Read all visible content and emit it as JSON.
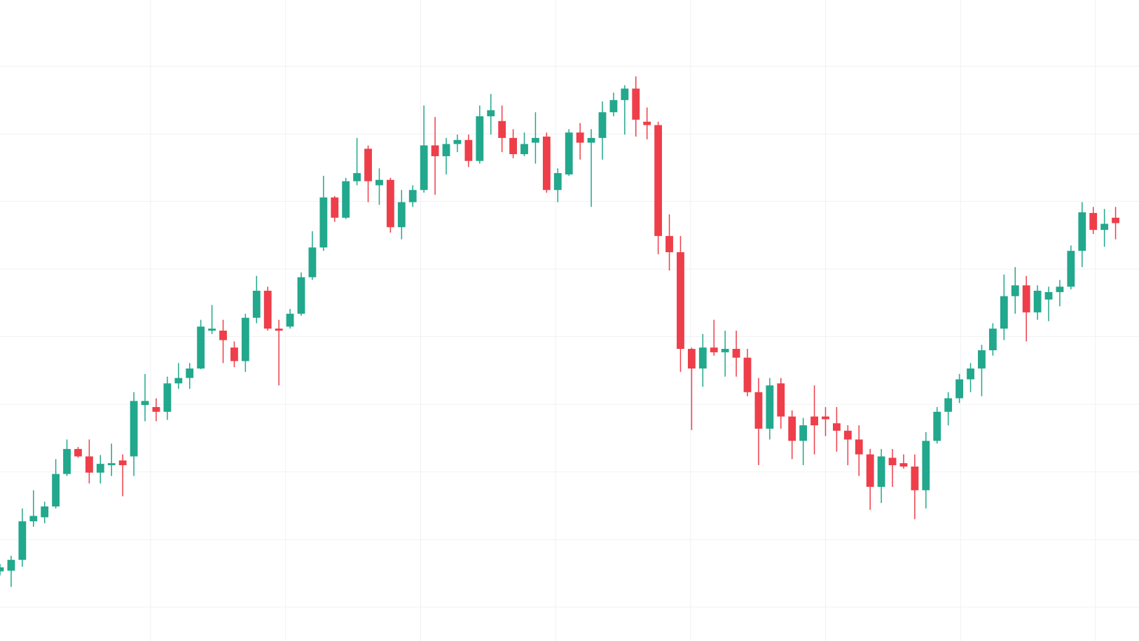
{
  "chart_data": {
    "type": "candlestick",
    "up_color": "#22a88c",
    "down_color": "#ee3e4a",
    "grid": true,
    "xlim": [
      0,
      102.1
    ],
    "xticks": [
      13.5,
      25.6,
      37.7,
      49.8,
      61.9,
      74,
      86.1,
      98.2
    ],
    "ylim": [
      0,
      94.8
    ],
    "yticks": [
      5,
      15,
      25,
      35,
      45,
      55,
      65,
      75,
      85
    ],
    "x": [
      0,
      1,
      2,
      3,
      4,
      5,
      6,
      7,
      8,
      9,
      10,
      11,
      12,
      13,
      14,
      15,
      16,
      17,
      18,
      19,
      20,
      21,
      22,
      23,
      24,
      25,
      26,
      27,
      28,
      29,
      30,
      31,
      32,
      33,
      34,
      35,
      36,
      37,
      38,
      39,
      40,
      41,
      42,
      43,
      44,
      45,
      46,
      47,
      48,
      49,
      50,
      51,
      52,
      53,
      54,
      55,
      56,
      57,
      58,
      59,
      60,
      61,
      62,
      63,
      64,
      65,
      66,
      67,
      68,
      69,
      70,
      71,
      72,
      73,
      74,
      75,
      76,
      77,
      78,
      79,
      80,
      81,
      82,
      83,
      84,
      85,
      86,
      87,
      88,
      89,
      90,
      91,
      92,
      93,
      94,
      95,
      96,
      97,
      98,
      99,
      100
    ],
    "open": [
      10.3,
      10.4,
      12.0,
      17.7,
      18.3,
      19.9,
      24.7,
      28.4,
      27.3,
      24.9,
      26.0,
      26.7,
      27.3,
      34.9,
      34.6,
      33.9,
      38.1,
      38.9,
      40.3,
      45.9,
      45.9,
      43.4,
      41.4,
      47.8,
      51.8,
      46.2,
      46.5,
      48.4,
      53.8,
      58.2,
      65.6,
      62.6,
      68.0,
      72.8,
      67.4,
      68.2,
      61.2,
      64.9,
      66.7,
      73.3,
      71.7,
      73.5,
      74.1,
      71.0,
      77.6,
      76.9,
      74.4,
      72.0,
      73.7,
      74.6,
      66.7,
      69.0,
      75.2,
      73.7,
      74.4,
      78.2,
      80.0,
      81.7,
      76.8,
      76.3,
      59.9,
      57.5,
      43.2,
      40.3,
      43.4,
      42.7,
      43.2,
      41.9,
      36.8,
      31.4,
      38.1,
      33.2,
      29.6,
      33.2,
      33.2,
      32.2,
      31.1,
      29.8,
      27.6,
      22.8,
      27.1,
      26.3,
      25.8,
      22.3,
      29.6,
      33.9,
      35.9,
      38.7,
      40.3,
      43.0,
      46.2,
      51.0,
      52.6,
      48.6,
      50.5,
      51.6,
      52.4,
      57.7,
      63.3,
      60.8,
      62.6
    ],
    "high": [
      11.4,
      12.6,
      19.6,
      22.3,
      20.6,
      26.9,
      29.8,
      28.7,
      29.8,
      27.5,
      29.2,
      27.6,
      36.8,
      39.5,
      35.9,
      39.1,
      41.1,
      41.1,
      47.5,
      49.7,
      47.5,
      44.3,
      48.4,
      54.0,
      52.4,
      47.5,
      49.1,
      54.5,
      60.6,
      68.8,
      65.8,
      68.5,
      74.4,
      73.3,
      69.9,
      68.5,
      66.7,
      67.4,
      79.2,
      77.5,
      74.4,
      74.9,
      74.9,
      79.2,
      80.9,
      79.2,
      75.7,
      75.2,
      78.2,
      75.2,
      69.9,
      75.7,
      76.6,
      75.7,
      79.8,
      81.1,
      82.2,
      83.5,
      78.9,
      76.8,
      63.1,
      59.9,
      43.4,
      45.4,
      47.5,
      45.9,
      45.9,
      43.2,
      38.9,
      38.9,
      38.9,
      34.1,
      33.0,
      37.8,
      34.6,
      34.6,
      31.9,
      31.9,
      28.4,
      28.4,
      28.4,
      27.6,
      27.6,
      30.9,
      34.6,
      36.8,
      39.5,
      41.1,
      43.8,
      47.0,
      54.2,
      55.3,
      54.0,
      52.6,
      52.4,
      53.4,
      58.5,
      64.9,
      64.2,
      63.9,
      64.2
    ],
    "low": [
      9.7,
      8.0,
      11.0,
      16.9,
      17.4,
      19.6,
      24.4,
      27.1,
      23.3,
      23.3,
      24.4,
      21.4,
      24.4,
      32.5,
      32.5,
      32.7,
      37.3,
      37.3,
      40.2,
      45.4,
      41.1,
      40.5,
      39.8,
      47.0,
      45.9,
      37.8,
      46.2,
      48.1,
      53.4,
      57.7,
      62.0,
      62.4,
      67.4,
      64.9,
      64.5,
      60.4,
      59.4,
      64.2,
      66.3,
      66.0,
      69.0,
      72.3,
      70.1,
      70.6,
      74.9,
      72.3,
      71.4,
      71.7,
      70.6,
      66.3,
      64.9,
      68.8,
      71.2,
      64.2,
      71.2,
      77.6,
      74.9,
      74.6,
      74.2,
      57.2,
      54.8,
      39.8,
      31.2,
      37.6,
      42.2,
      39.1,
      39.1,
      36.2,
      26.0,
      29.8,
      31.4,
      26.9,
      26.0,
      27.6,
      30.3,
      28.0,
      26.0,
      24.4,
      19.4,
      20.4,
      22.8,
      25.5,
      18.0,
      19.6,
      29.2,
      31.9,
      35.2,
      36.8,
      36.2,
      42.2,
      44.5,
      48.4,
      44.3,
      47.5,
      47.3,
      49.5,
      52.0,
      55.3,
      60.2,
      58.3,
      59.4
    ],
    "close": [
      10.9,
      12.0,
      17.7,
      18.5,
      19.9,
      24.7,
      28.4,
      27.3,
      24.9,
      26.2,
      26.3,
      26.0,
      35.5,
      35.5,
      33.9,
      38.1,
      38.9,
      40.3,
      46.5,
      46.2,
      44.5,
      41.4,
      47.8,
      51.8,
      46.2,
      45.9,
      48.4,
      53.8,
      58.2,
      65.6,
      62.6,
      68.0,
      69.2,
      68.0,
      68.2,
      61.2,
      64.9,
      66.7,
      73.3,
      71.7,
      73.5,
      74.1,
      71.0,
      77.6,
      78.5,
      74.4,
      72.0,
      73.5,
      74.4,
      66.7,
      69.2,
      75.2,
      73.7,
      74.4,
      78.2,
      80.0,
      81.7,
      77.1,
      76.3,
      59.9,
      57.5,
      43.2,
      40.3,
      43.4,
      42.7,
      43.2,
      41.9,
      36.8,
      31.4,
      37.8,
      33.2,
      29.6,
      31.9,
      31.9,
      32.8,
      31.1,
      29.8,
      27.6,
      22.8,
      27.3,
      26.0,
      25.8,
      22.3,
      29.6,
      33.9,
      35.9,
      38.7,
      40.3,
      43.0,
      46.2,
      51.0,
      52.6,
      48.6,
      51.8,
      51.6,
      52.4,
      57.7,
      63.4,
      60.8,
      61.7,
      61.8
    ]
  }
}
